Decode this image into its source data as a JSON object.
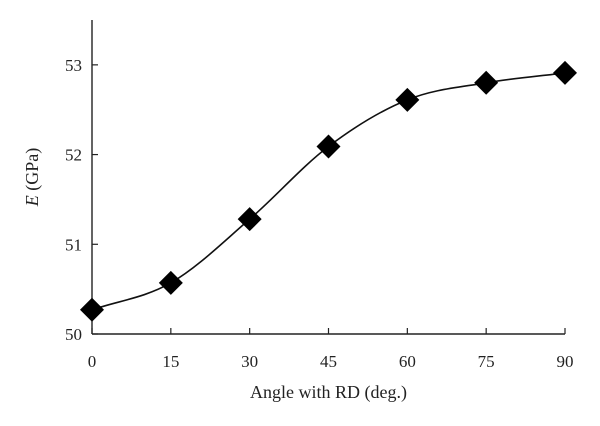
{
  "chart_data": {
    "type": "scatter",
    "title": "",
    "xlabel": "Angle with RD (deg.)",
    "ylabel_var": "E",
    "ylabel_unit": " (GPa)",
    "x": [
      0,
      15,
      30,
      45,
      60,
      75,
      90
    ],
    "series": [
      {
        "values": [
          50.27,
          50.57,
          51.28,
          52.09,
          52.61,
          52.8,
          52.91
        ],
        "marker": "diamond",
        "color": "#000000",
        "fit_line": true
      }
    ],
    "xlim": [
      0,
      90
    ],
    "ylim": [
      50,
      53.5
    ],
    "xticks": [
      0,
      15,
      30,
      45,
      60,
      75,
      90
    ],
    "yticks": [
      50,
      51,
      52,
      53
    ],
    "xtick_labels": [
      "0",
      "15",
      "30",
      "45",
      "60",
      "75",
      "90"
    ],
    "ytick_labels": [
      "50",
      "51",
      "52",
      "53"
    ],
    "grid": false,
    "legend": "none"
  }
}
